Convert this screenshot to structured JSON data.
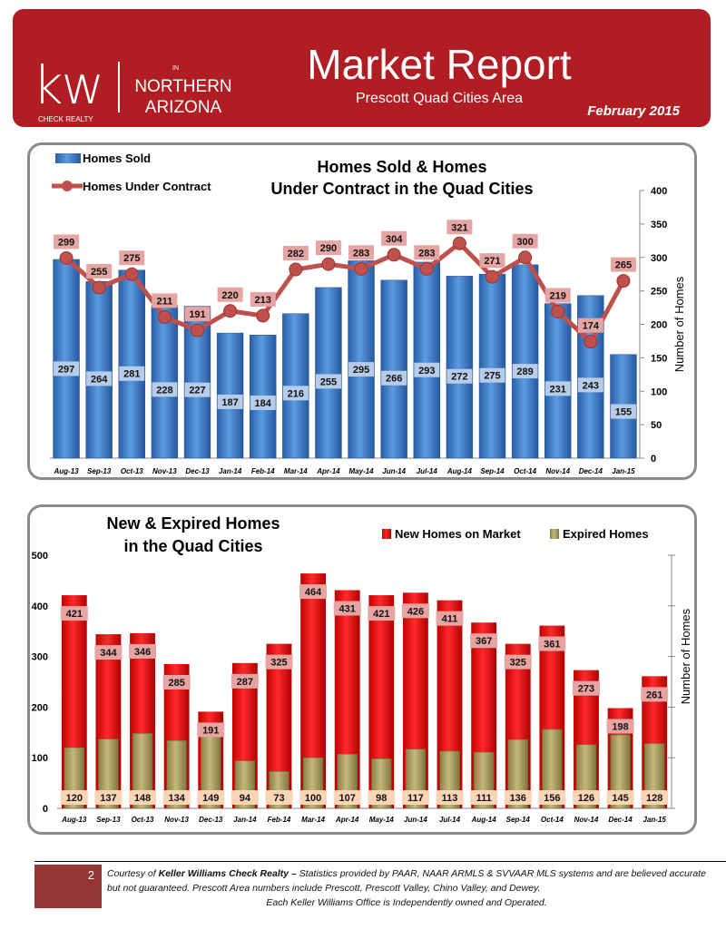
{
  "header": {
    "logo_kw": "kw",
    "logo_check_realty": "CHECK REALTY",
    "logo_in": "IN",
    "logo_region_1": "NORTHERN",
    "logo_region_2": "ARIZONA",
    "title": "Market Report",
    "subtitle": "Prescott Quad Cities Area",
    "date": "February 2015",
    "color": "#b01e24"
  },
  "chart_data": [
    {
      "type": "bar+line",
      "title_line1": "Homes Sold & Homes",
      "title_line2": "Under Contract in the Quad Cities",
      "ylabel": "Number of Homes",
      "ylim": [
        0,
        400
      ],
      "yticks": [
        0,
        50,
        100,
        150,
        200,
        250,
        300,
        350,
        400
      ],
      "axis_side": "right",
      "legend_placement": "top-left",
      "categories": [
        "Aug-13",
        "Sep-13",
        "Oct-13",
        "Nov-13",
        "Dec-13",
        "Jan-14",
        "Feb-14",
        "Mar-14",
        "Apr-14",
        "May-14",
        "Jun-14",
        "Jul-14",
        "Aug-14",
        "Sep-14",
        "Oct-14",
        "Nov-14",
        "Dec-14",
        "Jan-15"
      ],
      "series": [
        {
          "name": "Homes Sold",
          "type": "bar",
          "color": "#3f7fcf",
          "values": [
            297,
            264,
            281,
            228,
            227,
            187,
            184,
            216,
            255,
            295,
            266,
            293,
            272,
            275,
            289,
            231,
            243,
            155
          ]
        },
        {
          "name": "Homes Under Contract",
          "type": "line",
          "color": "#c0504d",
          "values": [
            299,
            255,
            275,
            211,
            191,
            220,
            213,
            282,
            290,
            283,
            304,
            283,
            321,
            271,
            300,
            219,
            174,
            265
          ]
        }
      ]
    },
    {
      "type": "bar",
      "title_line1": "New & Expired Homes",
      "title_line2": "in the Quad Cities",
      "ylabel": "Number of Homes",
      "ylim": [
        0,
        500
      ],
      "yticks": [
        0,
        100,
        200,
        300,
        400,
        500
      ],
      "legend_placement": "top-right",
      "categories": [
        "Aug-13",
        "Sep-13",
        "Oct-13",
        "Nov-13",
        "Dec-13",
        "Jan-14",
        "Feb-14",
        "Mar-14",
        "Apr-14",
        "May-14",
        "Jun-14",
        "Jul-14",
        "Aug-14",
        "Sep-14",
        "Oct-14",
        "Nov-14",
        "Dec-14",
        "Jan-15"
      ],
      "series": [
        {
          "name": "New Homes on Market",
          "color": "#e00000",
          "values": [
            421,
            344,
            346,
            285,
            191,
            287,
            325,
            464,
            431,
            421,
            426,
            411,
            367,
            325,
            361,
            273,
            198,
            261
          ]
        },
        {
          "name": "Expired Homes",
          "color": "#a09657",
          "values": [
            120,
            137,
            148,
            134,
            149,
            94,
            73,
            100,
            107,
            98,
            117,
            113,
            111,
            136,
            156,
            126,
            145,
            128
          ]
        }
      ]
    }
  ],
  "footer": {
    "page": "2",
    "courtesy": "Courtesy of ",
    "company": "Keller Williams Check Realty –",
    "line1_rest": " Statistics provided by PAAR, NAAR ARMLS & SVVAAR MLS systems and are believed accurate but not guaranteed. Prescott Area numbers include Prescott, Prescott Valley, Chino Valley, and Dewey.",
    "line3": "Each Keller Williams Office is Independently owned and Operated."
  }
}
